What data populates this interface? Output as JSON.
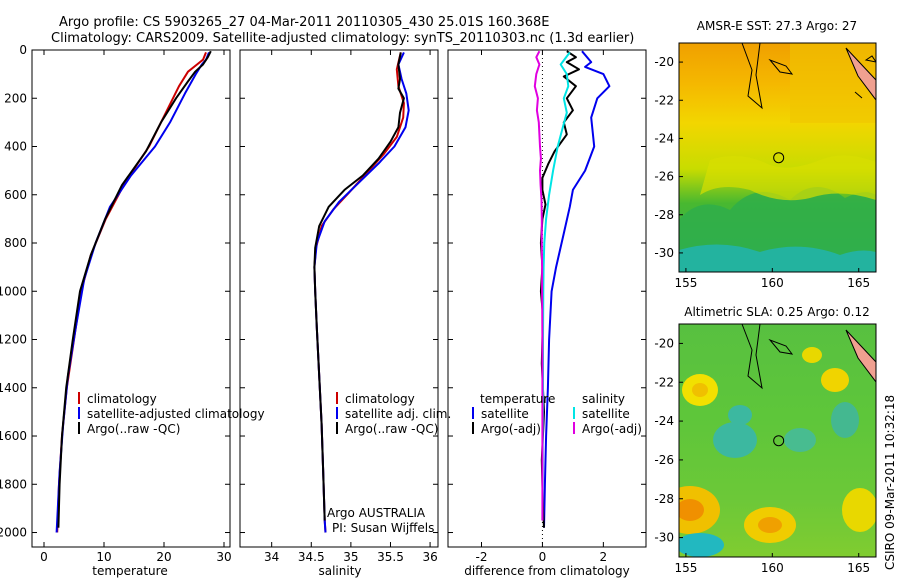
{
  "header": {
    "line1": "Argo profile: CS 5903265_27 04-Mar-2011 20110305_430 25.01S 160.368E",
    "line2": "Climatology: CARS2009. Satellite-adjusted climatology: synTS_20110303.nc (1.3d earlier)"
  },
  "side_stamp": "CSIRO 09-Mar-2011 10:32:18",
  "colors": {
    "red": "#cc0000",
    "blue": "#0000ee",
    "black": "#000000",
    "cyan": "#00e5e5",
    "magenta": "#e000e0"
  },
  "chart_data": [
    {
      "type": "line",
      "id": "temperature",
      "xlabel": "temperature",
      "xlim": [
        -2,
        31
      ],
      "xticks": [
        0,
        10,
        20,
        30
      ],
      "ylim": [
        2060,
        0
      ],
      "yticks": [
        0,
        200,
        400,
        600,
        800,
        1000,
        1200,
        1400,
        1600,
        1800,
        2000
      ],
      "legend": {
        "placement": "lower-right",
        "entries": [
          "climatology",
          "satellite-adjusted climatology",
          "Argo(..raw -QC)"
        ]
      },
      "series": [
        {
          "name": "climatology",
          "color": "red",
          "points": [
            [
              27.0,
              10
            ],
            [
              26.5,
              40
            ],
            [
              25.5,
              60
            ],
            [
              24.0,
              90
            ],
            [
              22.5,
              150
            ],
            [
              20.5,
              250
            ],
            [
              17.5,
              400
            ],
            [
              13.5,
              550
            ],
            [
              10.3,
              700
            ],
            [
              7.8,
              850
            ],
            [
              6.2,
              1000
            ],
            [
              5.0,
              1200
            ],
            [
              3.8,
              1400
            ],
            [
              3.0,
              1600
            ],
            [
              2.5,
              1800
            ],
            [
              2.2,
              2000
            ]
          ]
        },
        {
          "name": "satellite-adjusted climatology",
          "color": "blue",
          "points": [
            [
              27.5,
              10
            ],
            [
              27.0,
              40
            ],
            [
              26.3,
              60
            ],
            [
              25.3,
              100
            ],
            [
              23.5,
              180
            ],
            [
              21.0,
              300
            ],
            [
              18.5,
              400
            ],
            [
              14.5,
              520
            ],
            [
              11.0,
              650
            ],
            [
              8.6,
              800
            ],
            [
              6.7,
              950
            ],
            [
              5.3,
              1150
            ],
            [
              4.0,
              1350
            ],
            [
              3.2,
              1550
            ],
            [
              2.6,
              1750
            ],
            [
              2.2,
              1950
            ],
            [
              2.1,
              2000
            ]
          ]
        },
        {
          "name": "Argo(..raw -QC)",
          "color": "black",
          "points": [
            [
              27.8,
              5
            ],
            [
              27.3,
              30
            ],
            [
              26.5,
              60
            ],
            [
              25.2,
              90
            ],
            [
              24.0,
              130
            ],
            [
              22.0,
              200
            ],
            [
              19.5,
              300
            ],
            [
              17.0,
              420
            ],
            [
              13.0,
              560
            ],
            [
              10.2,
              700
            ],
            [
              7.8,
              850
            ],
            [
              6.0,
              1000
            ],
            [
              4.8,
              1200
            ],
            [
              3.7,
              1400
            ],
            [
              3.0,
              1600
            ],
            [
              2.6,
              1800
            ],
            [
              2.4,
              1980
            ]
          ]
        }
      ]
    },
    {
      "type": "line",
      "id": "salinity",
      "xlabel": "salinity",
      "xlim": [
        33.6,
        36.1
      ],
      "xticks": [
        34,
        34.5,
        35,
        35.5,
        36
      ],
      "ylim": [
        2060,
        0
      ],
      "yticks": [
        0,
        200,
        400,
        600,
        800,
        1000,
        1200,
        1400,
        1600,
        1800,
        2000
      ],
      "legend": {
        "placement": "lower-right",
        "entries": [
          "climatology",
          "satellite adj. clim.",
          "Argo(..raw -QC)"
        ]
      },
      "annotation": [
        "Argo AUSTRALIA",
        "PI: Susan Wijffels"
      ],
      "series": [
        {
          "name": "climatology",
          "color": "red",
          "points": [
            [
              35.63,
              10
            ],
            [
              35.58,
              80
            ],
            [
              35.6,
              150
            ],
            [
              35.67,
              220
            ],
            [
              35.66,
              280
            ],
            [
              35.58,
              360
            ],
            [
              35.42,
              430
            ],
            [
              35.2,
              510
            ],
            [
              34.98,
              590
            ],
            [
              34.78,
              660
            ],
            [
              34.63,
              730
            ],
            [
              34.56,
              820
            ],
            [
              34.54,
              900
            ],
            [
              34.55,
              1000
            ],
            [
              34.57,
              1150
            ],
            [
              34.6,
              1350
            ],
            [
              34.63,
              1550
            ],
            [
              34.65,
              1750
            ],
            [
              34.67,
              1950
            ],
            [
              34.68,
              2000
            ]
          ]
        },
        {
          "name": "satellite adj. clim.",
          "color": "blue",
          "points": [
            [
              35.67,
              10
            ],
            [
              35.6,
              60
            ],
            [
              35.64,
              120
            ],
            [
              35.7,
              180
            ],
            [
              35.73,
              250
            ],
            [
              35.69,
              320
            ],
            [
              35.55,
              400
            ],
            [
              35.35,
              470
            ],
            [
              35.1,
              550
            ],
            [
              34.85,
              630
            ],
            [
              34.67,
              710
            ],
            [
              34.57,
              800
            ],
            [
              34.54,
              900
            ],
            [
              34.55,
              1000
            ],
            [
              34.57,
              1150
            ],
            [
              34.6,
              1350
            ],
            [
              34.63,
              1550
            ],
            [
              34.65,
              1750
            ],
            [
              34.67,
              1950
            ],
            [
              34.68,
              2000
            ]
          ]
        },
        {
          "name": "Argo(..raw -QC)",
          "color": "black",
          "points": [
            [
              35.63,
              10
            ],
            [
              35.6,
              60
            ],
            [
              35.62,
              120
            ],
            [
              35.6,
              160
            ],
            [
              35.67,
              200
            ],
            [
              35.62,
              260
            ],
            [
              35.6,
              320
            ],
            [
              35.5,
              380
            ],
            [
              35.35,
              450
            ],
            [
              35.15,
              520
            ],
            [
              34.92,
              580
            ],
            [
              34.72,
              650
            ],
            [
              34.6,
              730
            ],
            [
              34.55,
              820
            ],
            [
              34.54,
              900
            ],
            [
              34.55,
              1000
            ],
            [
              34.57,
              1150
            ],
            [
              34.6,
              1350
            ],
            [
              34.63,
              1550
            ],
            [
              34.65,
              1750
            ],
            [
              34.67,
              1950
            ]
          ]
        }
      ]
    },
    {
      "type": "line",
      "id": "difference",
      "xlabel": "difference from climatology",
      "xlim": [
        -3.1,
        3.4
      ],
      "xticks": [
        -2,
        0,
        2
      ],
      "ylim": [
        2060,
        0
      ],
      "yticks": [
        0,
        200,
        400,
        600,
        800,
        1000,
        1200,
        1400,
        1600,
        1800,
        2000
      ],
      "reference_line_x": 0,
      "legend": {
        "placement": "lower-right",
        "groups": [
          {
            "title": "temperature",
            "entries": [
              "satellite",
              "Argo(-adj)"
            ]
          },
          {
            "title": "salinity",
            "entries": [
              "satellite",
              "Argo(-adj)"
            ]
          }
        ]
      },
      "series": [
        {
          "name": "temperature satellite",
          "color": "blue",
          "points": [
            [
              1.3,
              5
            ],
            [
              1.6,
              50
            ],
            [
              1.4,
              70
            ],
            [
              2.0,
              100
            ],
            [
              2.2,
              150
            ],
            [
              1.8,
              200
            ],
            [
              1.6,
              280
            ],
            [
              1.7,
              400
            ],
            [
              1.4,
              500
            ],
            [
              1.0,
              580
            ],
            [
              0.9,
              650
            ],
            [
              0.7,
              760
            ],
            [
              0.45,
              900
            ],
            [
              0.3,
              1000
            ],
            [
              0.22,
              1200
            ],
            [
              0.18,
              1400
            ],
            [
              0.12,
              1600
            ],
            [
              0.08,
              1800
            ],
            [
              0.05,
              1980
            ]
          ]
        },
        {
          "name": "temperature Argo(-adj)",
          "color": "black",
          "points": [
            [
              0.8,
              5
            ],
            [
              1.1,
              30
            ],
            [
              0.8,
              50
            ],
            [
              1.2,
              80
            ],
            [
              0.7,
              110
            ],
            [
              1.1,
              150
            ],
            [
              0.8,
              200
            ],
            [
              1.0,
              250
            ],
            [
              0.7,
              300
            ],
            [
              0.8,
              350
            ],
            [
              0.4,
              420
            ],
            [
              0.2,
              470
            ],
            [
              0.0,
              530
            ],
            [
              0.0,
              580
            ],
            [
              0.1,
              640
            ],
            [
              0.0,
              700
            ],
            [
              -0.05,
              800
            ],
            [
              0.0,
              900
            ],
            [
              -0.05,
              1000
            ],
            [
              0.02,
              1100
            ],
            [
              -0.02,
              1300
            ],
            [
              0.05,
              1500
            ],
            [
              -0.02,
              1700
            ],
            [
              0.02,
              1900
            ],
            [
              0.05,
              1980
            ]
          ]
        },
        {
          "name": "salinity satellite",
          "color": "cyan",
          "points": [
            [
              0.9,
              10
            ],
            [
              0.6,
              60
            ],
            [
              0.8,
              100
            ],
            [
              0.85,
              150
            ],
            [
              0.7,
              200
            ],
            [
              0.8,
              260
            ],
            [
              0.65,
              330
            ],
            [
              0.5,
              400
            ],
            [
              0.35,
              500
            ],
            [
              0.22,
              600
            ],
            [
              0.12,
              700
            ],
            [
              0.06,
              800
            ],
            [
              0.04,
              900
            ],
            [
              0.03,
              1000
            ],
            [
              0.02,
              1200
            ],
            [
              0.02,
              1400
            ],
            [
              0.01,
              1600
            ],
            [
              0.01,
              1800
            ],
            [
              0.0,
              1950
            ]
          ]
        },
        {
          "name": "salinity Argo(-adj)",
          "color": "magenta",
          "points": [
            [
              -0.1,
              5
            ],
            [
              -0.2,
              30
            ],
            [
              -0.1,
              60
            ],
            [
              -0.2,
              100
            ],
            [
              -0.25,
              150
            ],
            [
              -0.15,
              200
            ],
            [
              -0.18,
              250
            ],
            [
              -0.12,
              300
            ],
            [
              -0.1,
              350
            ],
            [
              -0.08,
              400
            ],
            [
              -0.05,
              450
            ],
            [
              -0.08,
              500
            ],
            [
              -0.06,
              560
            ],
            [
              -0.03,
              620
            ],
            [
              -0.02,
              700
            ],
            [
              -0.02,
              800
            ],
            [
              -0.01,
              900
            ],
            [
              -0.01,
              1000
            ],
            [
              0.0,
              1200
            ],
            [
              0.0,
              1500
            ],
            [
              0.0,
              1800
            ],
            [
              0.0,
              1950
            ]
          ]
        }
      ]
    },
    {
      "type": "heatmap",
      "id": "sst_map",
      "title": "AMSR-E SST: 27.3 Argo: 27",
      "xlim": [
        154.6,
        166
      ],
      "xticks": [
        155,
        160,
        165
      ],
      "ylim": [
        -31,
        -19
      ],
      "yticks": [
        -20,
        -22,
        -24,
        -26,
        -28,
        -30
      ],
      "marker": {
        "lon": 160.368,
        "lat": -25.01
      }
    },
    {
      "type": "heatmap",
      "id": "sla_map",
      "title": "Altimetric SLA: 0.25 Argo: 0.12",
      "xlim": [
        154.6,
        166
      ],
      "xticks": [
        155,
        160,
        165
      ],
      "ylim": [
        -31,
        -19
      ],
      "yticks": [
        -20,
        -22,
        -24,
        -26,
        -28,
        -30
      ],
      "marker": {
        "lon": 160.368,
        "lat": -25.01
      }
    }
  ]
}
